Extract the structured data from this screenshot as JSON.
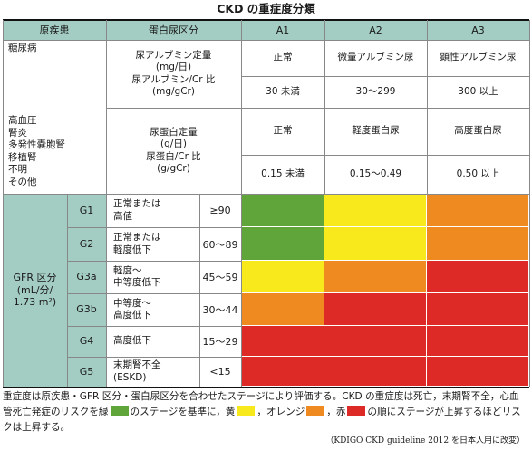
{
  "title": "CKD の重症度分類",
  "headers": {
    "cause": "原疾患",
    "proteinuria": "蛋白尿区分",
    "a1": "A1",
    "a2": "A2",
    "a3": "A3"
  },
  "diabetes_row": {
    "cause": "糖尿病",
    "measure": "尿アルブミン定量\n(mg/日)\n尿アルブミン/Cr 比\n(mg/gCr)",
    "a1_label": "正常",
    "a2_label": "微量アルブミン尿",
    "a3_label": "顕性アルブミン尿",
    "a1_range": "30 未満",
    "a2_range": "30〜299",
    "a3_range": "300 以上"
  },
  "other_row": {
    "cause": "高血圧\n腎炎\n多発性嚢胞腎\n移植腎\n不明\nその他",
    "measure": "尿蛋白定量\n(g/日)\n尿蛋白/Cr 比\n(g/gCr)",
    "a1_label": "正常",
    "a2_label": "軽度蛋白尿",
    "a3_label": "高度蛋白尿",
    "a1_range": "0.15 未満",
    "a2_range": "0.15〜0.49",
    "a3_range": "0.50 以上"
  },
  "gfr_label": "GFR 区分\n(mL/分/\n1.73 m²)",
  "gfr_rows": [
    {
      "code": "G1",
      "desc": "正常または\n高値",
      "range": "≥90",
      "colors": [
        "#5fa539",
        "#f7e91b",
        "#ee8a1f"
      ]
    },
    {
      "code": "G2",
      "desc": "正常または\n軽度低下",
      "range": "60〜89",
      "colors": [
        "#5fa539",
        "#f7e91b",
        "#ee8a1f"
      ]
    },
    {
      "code": "G3a",
      "desc": "軽度〜\n中等度低下",
      "range": "45〜59",
      "colors": [
        "#f7e91b",
        "#ee8a1f",
        "#dd2a26"
      ]
    },
    {
      "code": "G3b",
      "desc": "中等度〜\n高度低下",
      "range": "30〜44",
      "colors": [
        "#ee8a1f",
        "#dd2a26",
        "#dd2a26"
      ]
    },
    {
      "code": "G4",
      "desc": "高度低下",
      "range": "15〜29",
      "colors": [
        "#dd2a26",
        "#dd2a26",
        "#dd2a26"
      ]
    },
    {
      "code": "G5",
      "desc": "末期腎不全\n(ESKD)",
      "range": "<15",
      "colors": [
        "#dd2a26",
        "#dd2a26",
        "#dd2a26"
      ]
    }
  ],
  "colors": {
    "header": "#a3cdc2",
    "green": "#5fa539",
    "yellow": "#f7e91b",
    "orange": "#ee8a1f",
    "red": "#dd2a26"
  },
  "footer": {
    "part1": "重症度は原疾患・GFR 区分・蛋白尿区分を合わせたステージにより評価する。CKD の重症度は死亡，末期腎不全，心血管死亡発症のリスクを緑",
    "part2": "のステージを基準に，黄",
    "part3": "，オレンジ",
    "part4": "，赤",
    "part5": "の順にステージが上昇するほどリスクは上昇する。"
  },
  "source": "（KDIGO CKD guideline 2012 を日本人用に改変）"
}
